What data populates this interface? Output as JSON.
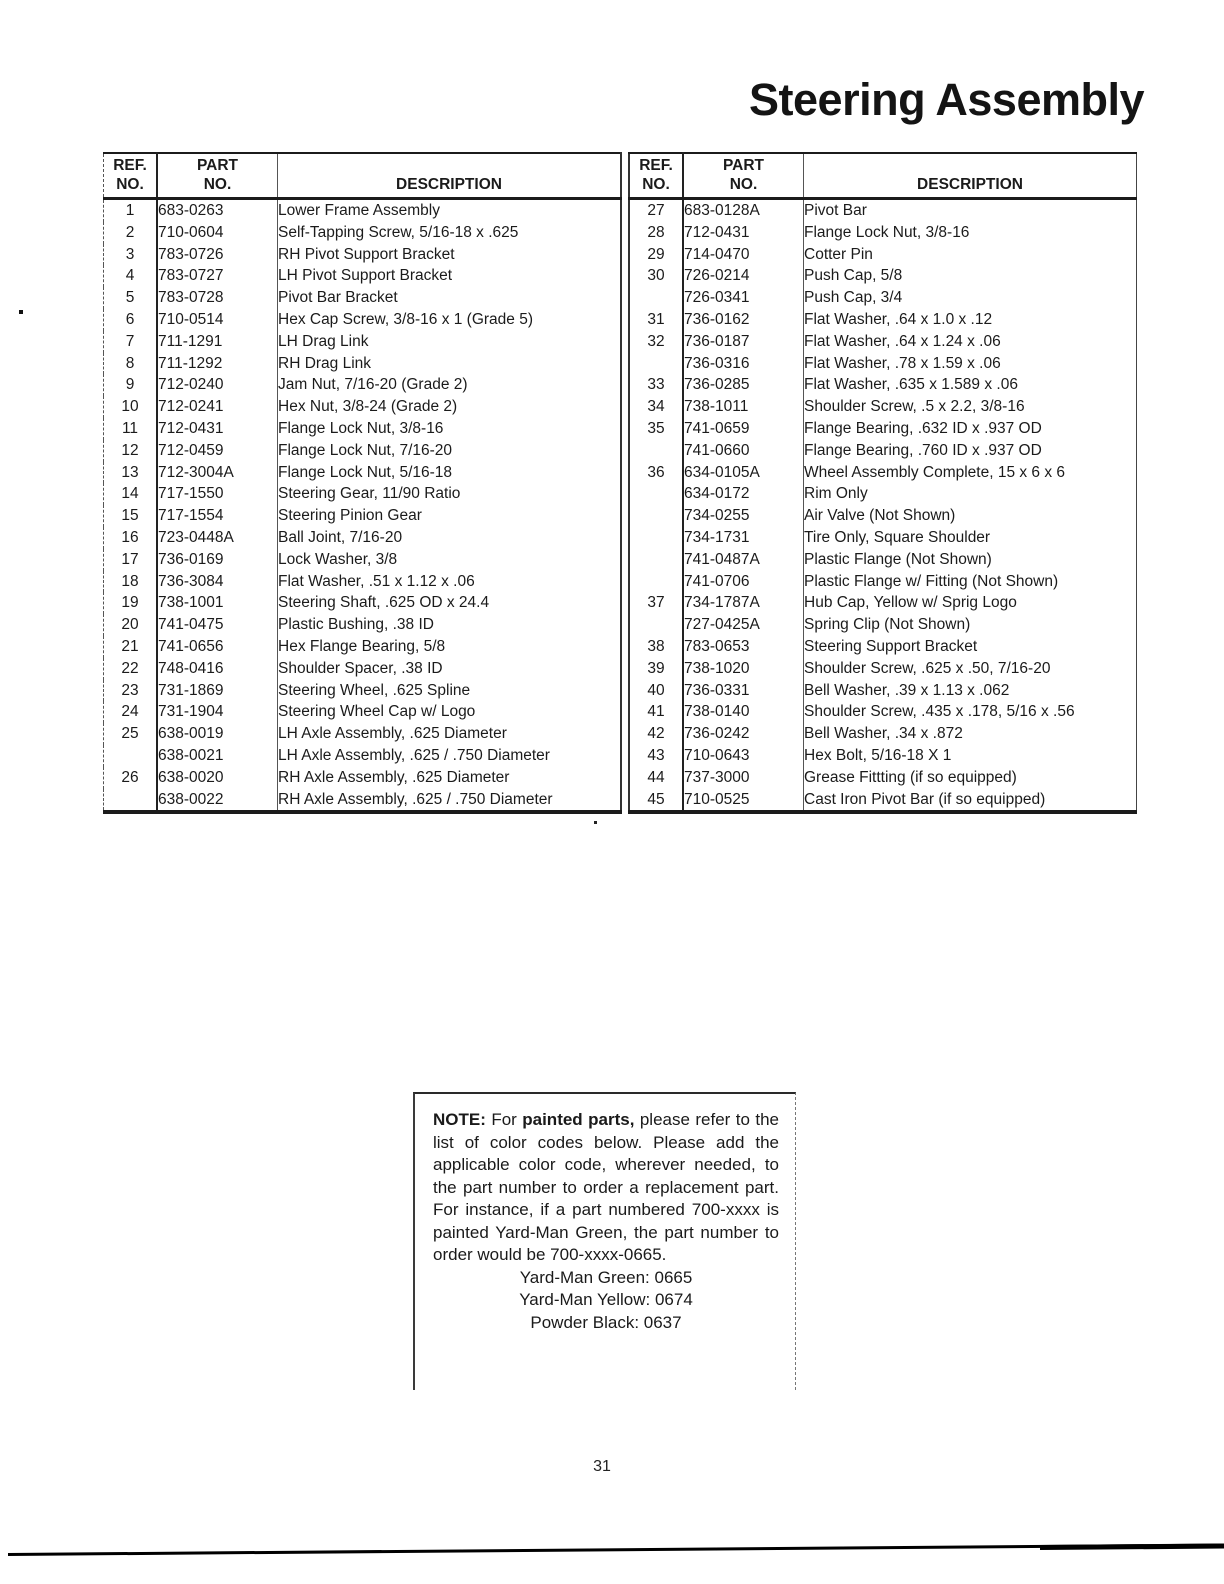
{
  "page": {
    "title": "Steering Assembly",
    "page_number": "31"
  },
  "table_headers": {
    "ref_line1": "REF.",
    "ref_line2": "NO.",
    "part_line1": "PART",
    "part_line2": "NO.",
    "description": "DESCRIPTION"
  },
  "left_table": {
    "rows": [
      {
        "ref": "1",
        "part": "683-0263",
        "desc": "Lower Frame Assembly"
      },
      {
        "ref": "2",
        "part": "710-0604",
        "desc": "Self-Tapping Screw, 5/16-18 x .625"
      },
      {
        "ref": "3",
        "part": "783-0726",
        "desc": "RH Pivot Support Bracket"
      },
      {
        "ref": "4",
        "part": "783-0727",
        "desc": "LH Pivot Support Bracket"
      },
      {
        "ref": "5",
        "part": "783-0728",
        "desc": "Pivot Bar Bracket"
      },
      {
        "ref": "6",
        "part": "710-0514",
        "desc": "Hex Cap Screw, 3/8-16 x 1 (Grade 5)"
      },
      {
        "ref": "7",
        "part": "711-1291",
        "desc": "LH Drag Link"
      },
      {
        "ref": "8",
        "part": "711-1292",
        "desc": "RH Drag Link"
      },
      {
        "ref": "9",
        "part": "712-0240",
        "desc": "Jam Nut, 7/16-20 (Grade 2)"
      },
      {
        "ref": "10",
        "part": "712-0241",
        "desc": "Hex Nut, 3/8-24 (Grade 2)"
      },
      {
        "ref": "11",
        "part": "712-0431",
        "desc": "Flange Lock Nut, 3/8-16"
      },
      {
        "ref": "12",
        "part": "712-0459",
        "desc": "Flange Lock Nut, 7/16-20"
      },
      {
        "ref": "13",
        "part": "712-3004A",
        "desc": "Flange Lock Nut, 5/16-18"
      },
      {
        "ref": "14",
        "part": "717-1550",
        "desc": "Steering Gear, 11/90 Ratio"
      },
      {
        "ref": "15",
        "part": "717-1554",
        "desc": "Steering Pinion Gear"
      },
      {
        "ref": "16",
        "part": "723-0448A",
        "desc": "Ball Joint, 7/16-20"
      },
      {
        "ref": "17",
        "part": "736-0169",
        "desc": "Lock Washer, 3/8"
      },
      {
        "ref": "18",
        "part": "736-3084",
        "desc": "Flat Washer, .51 x 1.12 x .06"
      },
      {
        "ref": "19",
        "part": "738-1001",
        "desc": "Steering Shaft, .625 OD x 24.4"
      },
      {
        "ref": "20",
        "part": "741-0475",
        "desc": "Plastic Bushing, .38 ID"
      },
      {
        "ref": "21",
        "part": "741-0656",
        "desc": "Hex Flange Bearing, 5/8"
      },
      {
        "ref": "22",
        "part": "748-0416",
        "desc": "Shoulder Spacer, .38 ID"
      },
      {
        "ref": "23",
        "part": "731-1869",
        "desc": "Steering Wheel, .625 Spline"
      },
      {
        "ref": "24",
        "part": "731-1904",
        "desc": "Steering Wheel Cap w/ Logo"
      },
      {
        "ref": "25",
        "part": "638-0019",
        "desc": "LH Axle Assembly, .625 Diameter"
      },
      {
        "ref": "",
        "part": "638-0021",
        "desc": "LH Axle Assembly, .625 / .750 Diameter"
      },
      {
        "ref": "26",
        "part": "638-0020",
        "desc": "RH Axle Assembly, .625 Diameter"
      },
      {
        "ref": "",
        "part": "638-0022",
        "desc": "RH Axle Assembly, .625 / .750 Diameter"
      }
    ]
  },
  "right_table": {
    "rows": [
      {
        "ref": "27",
        "part": "683-0128A",
        "desc": "Pivot Bar"
      },
      {
        "ref": "28",
        "part": "712-0431",
        "desc": "Flange Lock Nut, 3/8-16"
      },
      {
        "ref": "29",
        "part": "714-0470",
        "desc": "Cotter Pin"
      },
      {
        "ref": "30",
        "part": "726-0214",
        "desc": "Push Cap, 5/8"
      },
      {
        "ref": "",
        "part": "726-0341",
        "desc": "Push Cap, 3/4"
      },
      {
        "ref": "31",
        "part": "736-0162",
        "desc": "Flat Washer, .64 x 1.0 x .12"
      },
      {
        "ref": "32",
        "part": "736-0187",
        "desc": "Flat Washer, .64 x 1.24 x .06"
      },
      {
        "ref": "",
        "part": "736-0316",
        "desc": "Flat Washer, .78 x 1.59 x .06"
      },
      {
        "ref": "33",
        "part": "736-0285",
        "desc": "Flat Washer, .635 x 1.589 x .06"
      },
      {
        "ref": "34",
        "part": "738-1011",
        "desc": "Shoulder Screw, .5 x 2.2, 3/8-16"
      },
      {
        "ref": "35",
        "part": "741-0659",
        "desc": "Flange Bearing, .632 ID x .937 OD"
      },
      {
        "ref": "",
        "part": "741-0660",
        "desc": "Flange Bearing, .760 ID x .937 OD"
      },
      {
        "ref": "36",
        "part": "634-0105A",
        "desc": "Wheel Assembly Complete, 15 x 6 x 6"
      },
      {
        "ref": "",
        "part": "634-0172",
        "desc": "Rim Only"
      },
      {
        "ref": "",
        "part": "734-0255",
        "desc": "Air Valve (Not Shown)"
      },
      {
        "ref": "",
        "part": "734-1731",
        "desc": "Tire Only, Square Shoulder"
      },
      {
        "ref": "",
        "part": "741-0487A",
        "desc": "Plastic Flange (Not Shown)"
      },
      {
        "ref": "",
        "part": "741-0706",
        "desc": "Plastic Flange w/ Fitting (Not Shown)"
      },
      {
        "ref": "37",
        "part": "734-1787A",
        "desc": "Hub Cap, Yellow w/ Sprig Logo"
      },
      {
        "ref": "",
        "part": "727-0425A",
        "desc": "Spring Clip (Not Shown)"
      },
      {
        "ref": "38",
        "part": "783-0653",
        "desc": "Steering Support Bracket"
      },
      {
        "ref": "39",
        "part": "738-1020",
        "desc": "Shoulder Screw, .625 x .50, 7/16-20"
      },
      {
        "ref": "40",
        "part": "736-0331",
        "desc": "Bell Washer, .39 x 1.13 x .062"
      },
      {
        "ref": "41",
        "part": "738-0140",
        "desc": "Shoulder Screw, .435 x .178, 5/16 x .56"
      },
      {
        "ref": "42",
        "part": "736-0242",
        "desc": "Bell Washer, .34 x .872"
      },
      {
        "ref": "43",
        "part": "710-0643",
        "desc": "Hex Bolt, 5/16-18 X 1"
      },
      {
        "ref": "44",
        "part": "737-3000",
        "desc": "Grease Fittting (if so equipped)"
      },
      {
        "ref": "45",
        "part": "710-0525",
        "desc": "Cast Iron Pivot Bar (if so equipped)"
      }
    ]
  },
  "note": {
    "label": "NOTE:",
    "seg1": " For ",
    "bold1": "painted parts,",
    "seg2": " please refer to the list of color codes below.  Please add the applicable color code, wherever needed, to the part number to order a replacement part.  For instance, if a part numbered 700-xxxx is painted Yard-Man Green, the part number to order would be 700-xxxx-0665.",
    "codes": [
      "Yard-Man Green: 0665",
      "Yard-Man Yellow: 0674",
      "Powder Black: 0637"
    ]
  }
}
